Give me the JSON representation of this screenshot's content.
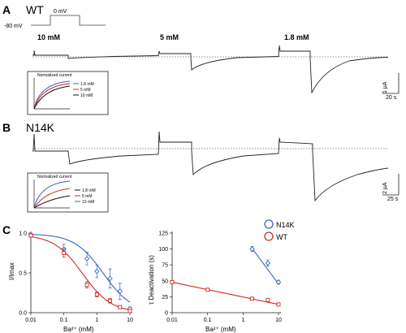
{
  "panels": {
    "A": {
      "letter": "A",
      "construct": "WT",
      "protocol": {
        "holding": "-80 mV",
        "step": "0 mV"
      },
      "conditions": [
        "10 mM",
        "5 mM",
        "1.8 mM"
      ],
      "scalebar": {
        "current": "1 µA",
        "time": "20 s"
      },
      "inset": {
        "title": "Normalized current",
        "legend": [
          "1.8 mM",
          "5 mM",
          "10 mM"
        ]
      }
    },
    "B": {
      "letter": "B",
      "construct": "N14K",
      "scalebar": {
        "current": "2 µA",
        "time": "25 s"
      },
      "inset": {
        "title": "Normalized current",
        "legend": [
          "1.8 mM",
          "5 mM",
          "10 mM"
        ]
      }
    },
    "C": {
      "letter": "C"
    }
  },
  "colors": {
    "n14k": "#3a66c4",
    "wt": "#d42a22",
    "trace": "#222222"
  },
  "chart_data": [
    {
      "type": "scatter",
      "xlabel": "Ba²⁺ (mM)",
      "ylabel": "I/Imax",
      "xscale": "log",
      "xlim": [
        0.01,
        10
      ],
      "ylim": [
        0,
        1
      ],
      "xticks": [
        "0.01",
        "0.1",
        "1",
        "10"
      ],
      "yticks": [
        "0.0",
        "0.5",
        "1.0"
      ],
      "series": [
        {
          "color": "#3a66c4",
          "marker": "diamond",
          "x": [
            0.01,
            0.1,
            0.5,
            1,
            2.5,
            5,
            10
          ],
          "y": [
            0.98,
            0.8,
            0.68,
            0.52,
            0.43,
            0.27,
            0.05
          ],
          "err": [
            0.02,
            0.06,
            0.08,
            0.08,
            0.12,
            0.1,
            0.02
          ],
          "fit": {
            "ic50": 1.55,
            "top": 0.99
          }
        },
        {
          "color": "#d42a22",
          "marker": "square",
          "x": [
            0.01,
            0.1,
            0.5,
            1,
            2.5,
            5,
            10
          ],
          "y": [
            0.97,
            0.75,
            0.35,
            0.23,
            0.15,
            0.07,
            0.02
          ],
          "err": [
            0.02,
            0.05,
            0.04,
            0.03,
            0.03,
            0.02,
            0.01
          ],
          "fit": {
            "ic50": 0.37,
            "top": 0.98
          }
        }
      ]
    },
    {
      "type": "scatter",
      "xlabel": "Ba²⁺ (mM)",
      "ylabel": "τ Deactivation (s)",
      "xscale": "log",
      "xlim": [
        0.01,
        10
      ],
      "ylim": [
        0,
        125
      ],
      "xticks": [
        "0.01",
        "0.1",
        "1",
        "10"
      ],
      "yticks": [
        "0",
        "25",
        "50",
        "75",
        "100",
        "125"
      ],
      "legend": {
        "placement": "top-right",
        "entries": [
          "N14K",
          "WT"
        ]
      },
      "series": [
        {
          "name": "N14K",
          "color": "#3a66c4",
          "marker": "diamond",
          "x": [
            1.8,
            5,
            10
          ],
          "y": [
            100,
            78,
            48
          ],
          "err": [
            4,
            5,
            3
          ],
          "fit": [
            [
              1.8,
              101
            ],
            [
              10,
              45
            ]
          ]
        },
        {
          "name": "WT",
          "color": "#d42a22",
          "marker": "square",
          "x": [
            0.01,
            0.1,
            1.8,
            5,
            10
          ],
          "y": [
            48,
            36,
            22,
            20,
            13
          ],
          "err": [
            1,
            1,
            1,
            1,
            1
          ],
          "fit": [
            [
              0.01,
              48
            ],
            [
              10,
              13
            ]
          ]
        }
      ]
    }
  ]
}
